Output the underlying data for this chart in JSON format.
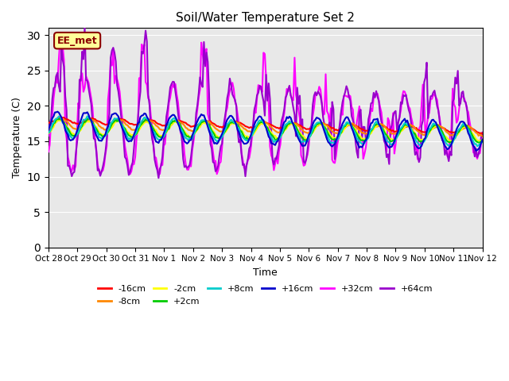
{
  "title": "Soil/Water Temperature Set 2",
  "xlabel": "Time",
  "ylabel": "Temperature (C)",
  "ylim": [
    0,
    31
  ],
  "yticks": [
    0,
    5,
    10,
    15,
    20,
    25,
    30
  ],
  "annotation_text": "EE_met",
  "annotation_color": "#8B0000",
  "annotation_bg": "#FFFF99",
  "background_color": "#E8E8E8",
  "series": {
    "-16cm": {
      "color": "#FF0000",
      "lw": 1.5
    },
    "-8cm": {
      "color": "#FF8800",
      "lw": 1.5
    },
    "-2cm": {
      "color": "#FFFF00",
      "lw": 1.5
    },
    "+2cm": {
      "color": "#00CC00",
      "lw": 1.5
    },
    "+8cm": {
      "color": "#00CCCC",
      "lw": 1.5
    },
    "+16cm": {
      "color": "#0000CC",
      "lw": 1.5
    },
    "+32cm": {
      "color": "#FF00FF",
      "lw": 1.5
    },
    "+64cm": {
      "color": "#9900CC",
      "lw": 1.5
    }
  },
  "xtick_labels": [
    "Oct 28",
    "Oct 29",
    "Oct 30",
    "Oct 31",
    "Nov 1",
    "Nov 2",
    "Nov 3",
    "Nov 4",
    "Nov 5",
    "Nov 6",
    "Nov 7",
    "Nov 8",
    "Nov 9",
    "Nov 10",
    "Nov 11",
    "Nov 12"
  ],
  "xtick_positions": [
    0,
    1,
    2,
    3,
    4,
    5,
    6,
    7,
    8,
    9,
    10,
    11,
    12,
    13,
    14,
    15
  ],
  "num_points": 336
}
